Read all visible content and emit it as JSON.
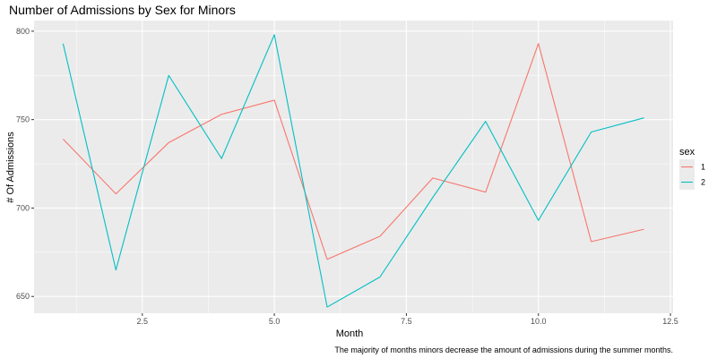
{
  "chart_data": {
    "type": "line",
    "title": "Number of Admissions by Sex for Minors",
    "xlabel": "Month",
    "ylabel": "# Of Admissions",
    "caption": "The majority of months minors decrease the amount of admissions during the summer months.",
    "xlim": [
      0.45,
      12.55
    ],
    "ylim": [
      640.5,
      806
    ],
    "x_ticks": [
      2.5,
      5.0,
      7.5,
      10.0,
      12.5
    ],
    "x_tick_labels": [
      "2.5",
      "5.0",
      "7.5",
      "10.0",
      "12.5"
    ],
    "y_ticks": [
      650,
      700,
      750,
      800
    ],
    "y_tick_labels": [
      "650",
      "700",
      "750",
      "800"
    ],
    "grid": true,
    "legend": {
      "title": "sex",
      "position": "right"
    },
    "x": [
      1,
      2,
      3,
      4,
      5,
      6,
      7,
      8,
      9,
      10,
      11,
      12
    ],
    "series": [
      {
        "name": "1",
        "color": "#F8766D",
        "values": [
          739,
          708,
          737,
          753,
          761,
          671,
          684,
          717,
          709,
          793,
          681,
          688
        ]
      },
      {
        "name": "2",
        "color": "#00BFC4",
        "values": [
          793,
          665,
          775,
          728,
          798,
          644,
          661,
          706,
          749,
          693,
          743,
          751
        ]
      }
    ]
  },
  "colors": {
    "panel_background": "#EBEBEB",
    "grid_major": "#FFFFFF",
    "tick_text": "#4D4D4D",
    "tick_mark": "#333333"
  }
}
